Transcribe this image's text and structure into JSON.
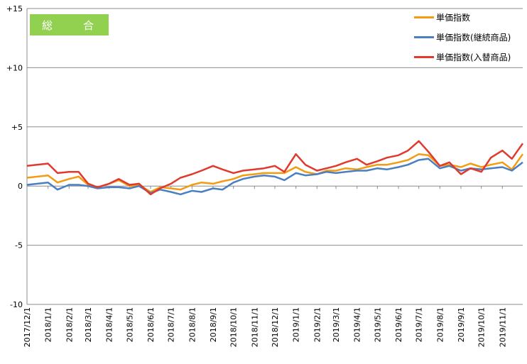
{
  "chart_data": {
    "type": "line",
    "title": "総　合",
    "xlabel": "",
    "ylabel": "",
    "ylim": [
      -10,
      15
    ],
    "yticks": [
      15,
      10,
      5,
      0,
      -5,
      -10
    ],
    "ytick_labels": [
      "+15",
      "+10",
      "+5",
      "0",
      "-5",
      "-10"
    ],
    "grid": true,
    "legend_position": "top-right",
    "x_range": [
      "2017-12-01",
      "2019-12-01"
    ],
    "x_ticks": [
      "2017-12-01",
      "2018-01-01",
      "2018-02-01",
      "2018-03-01",
      "2018-04-01",
      "2018-05-01",
      "2018-06-01",
      "2018-07-01",
      "2018-08-01",
      "2018-09-01",
      "2018-10-01",
      "2018-11-01",
      "2018-12-01",
      "2019-01-01",
      "2019-02-01",
      "2019-03-01",
      "2019-04-01",
      "2019-05-01",
      "2019-06-01",
      "2019-07-01",
      "2019-08-01",
      "2019-09-01",
      "2019-10-01",
      "2019-11-01"
    ],
    "x_tick_labels": [
      "2017/12/1",
      "2018/1/1",
      "2018/2/1",
      "2018/3/1",
      "2018/4/1",
      "2018/5/1",
      "2018/6/1",
      "2018/7/1",
      "2018/8/1",
      "2018/9/1",
      "2018/10/1",
      "2018/11/1",
      "2018/12/1",
      "2019/1/1",
      "2019/2/1",
      "2019/3/1",
      "2019/4/1",
      "2019/5/1",
      "2019/6/1",
      "2019/7/1",
      "2019/8/1",
      "2019/9/1",
      "2019/10/1",
      "2019/11/1"
    ],
    "series": [
      {
        "name": "単価指数",
        "color": "#f39c12",
        "points": [
          [
            "2017-12-01",
            0.7
          ],
          [
            "2018-01-01",
            0.9
          ],
          [
            "2018-01-15",
            0.3
          ],
          [
            "2018-02-01",
            0.6
          ],
          [
            "2018-02-15",
            0.8
          ],
          [
            "2018-03-01",
            0.1
          ],
          [
            "2018-03-15",
            -0.1
          ],
          [
            "2018-04-01",
            0.2
          ],
          [
            "2018-04-15",
            0.5
          ],
          [
            "2018-05-01",
            0.0
          ],
          [
            "2018-05-15",
            0.1
          ],
          [
            "2018-06-01",
            -0.5
          ],
          [
            "2018-06-15",
            -0.1
          ],
          [
            "2018-07-01",
            -0.2
          ],
          [
            "2018-07-15",
            -0.3
          ],
          [
            "2018-08-01",
            0.1
          ],
          [
            "2018-08-15",
            0.3
          ],
          [
            "2018-09-01",
            0.2
          ],
          [
            "2018-09-15",
            0.4
          ],
          [
            "2018-10-01",
            0.6
          ],
          [
            "2018-10-15",
            0.9
          ],
          [
            "2018-11-01",
            1.0
          ],
          [
            "2018-11-15",
            1.1
          ],
          [
            "2018-12-01",
            1.1
          ],
          [
            "2018-12-15",
            1.1
          ],
          [
            "2019-01-01",
            1.6
          ],
          [
            "2019-01-15",
            1.2
          ],
          [
            "2019-02-01",
            1.0
          ],
          [
            "2019-02-15",
            1.3
          ],
          [
            "2019-03-01",
            1.3
          ],
          [
            "2019-03-15",
            1.5
          ],
          [
            "2019-04-01",
            1.4
          ],
          [
            "2019-04-15",
            1.6
          ],
          [
            "2019-05-01",
            1.8
          ],
          [
            "2019-05-15",
            1.8
          ],
          [
            "2019-06-01",
            2.0
          ],
          [
            "2019-06-15",
            2.2
          ],
          [
            "2019-07-01",
            2.7
          ],
          [
            "2019-07-15",
            2.6
          ],
          [
            "2019-08-01",
            1.7
          ],
          [
            "2019-08-15",
            1.8
          ],
          [
            "2019-09-01",
            1.6
          ],
          [
            "2019-09-15",
            1.9
          ],
          [
            "2019-10-01",
            1.6
          ],
          [
            "2019-10-15",
            1.8
          ],
          [
            "2019-11-01",
            2.0
          ],
          [
            "2019-11-15",
            1.4
          ],
          [
            "2019-12-01",
            2.7
          ]
        ]
      },
      {
        "name": "単価指数(継続商品)",
        "color": "#4a7fc1",
        "points": [
          [
            "2017-12-01",
            0.1
          ],
          [
            "2018-01-01",
            0.3
          ],
          [
            "2018-01-15",
            -0.3
          ],
          [
            "2018-02-01",
            0.1
          ],
          [
            "2018-02-15",
            0.1
          ],
          [
            "2018-03-01",
            0.0
          ],
          [
            "2018-03-15",
            -0.2
          ],
          [
            "2018-04-01",
            -0.1
          ],
          [
            "2018-04-15",
            -0.1
          ],
          [
            "2018-05-01",
            -0.2
          ],
          [
            "2018-05-15",
            0.0
          ],
          [
            "2018-06-01",
            -0.6
          ],
          [
            "2018-06-15",
            -0.3
          ],
          [
            "2018-07-01",
            -0.5
          ],
          [
            "2018-07-15",
            -0.7
          ],
          [
            "2018-08-01",
            -0.4
          ],
          [
            "2018-08-15",
            -0.5
          ],
          [
            "2018-09-01",
            -0.2
          ],
          [
            "2018-09-15",
            -0.3
          ],
          [
            "2018-10-01",
            0.3
          ],
          [
            "2018-10-15",
            0.6
          ],
          [
            "2018-11-01",
            0.8
          ],
          [
            "2018-11-15",
            0.9
          ],
          [
            "2018-12-01",
            0.8
          ],
          [
            "2018-12-15",
            0.5
          ],
          [
            "2019-01-01",
            1.1
          ],
          [
            "2019-01-15",
            0.9
          ],
          [
            "2019-02-01",
            1.0
          ],
          [
            "2019-02-15",
            1.2
          ],
          [
            "2019-03-01",
            1.1
          ],
          [
            "2019-03-15",
            1.2
          ],
          [
            "2019-04-01",
            1.3
          ],
          [
            "2019-04-15",
            1.3
          ],
          [
            "2019-05-01",
            1.5
          ],
          [
            "2019-05-15",
            1.4
          ],
          [
            "2019-06-01",
            1.6
          ],
          [
            "2019-06-15",
            1.8
          ],
          [
            "2019-07-01",
            2.2
          ],
          [
            "2019-07-15",
            2.3
          ],
          [
            "2019-08-01",
            1.5
          ],
          [
            "2019-08-15",
            1.7
          ],
          [
            "2019-09-01",
            1.3
          ],
          [
            "2019-09-15",
            1.5
          ],
          [
            "2019-10-01",
            1.4
          ],
          [
            "2019-10-15",
            1.5
          ],
          [
            "2019-11-01",
            1.6
          ],
          [
            "2019-11-15",
            1.3
          ],
          [
            "2019-12-01",
            2.0
          ]
        ]
      },
      {
        "name": "単価指数(入替商品)",
        "color": "#e03a2f",
        "points": [
          [
            "2017-12-01",
            1.7
          ],
          [
            "2018-01-01",
            1.9
          ],
          [
            "2018-01-15",
            1.1
          ],
          [
            "2018-02-01",
            1.2
          ],
          [
            "2018-02-15",
            1.2
          ],
          [
            "2018-03-01",
            0.2
          ],
          [
            "2018-03-15",
            -0.1
          ],
          [
            "2018-04-01",
            0.2
          ],
          [
            "2018-04-15",
            0.6
          ],
          [
            "2018-05-01",
            0.1
          ],
          [
            "2018-05-15",
            0.2
          ],
          [
            "2018-06-01",
            -0.7
          ],
          [
            "2018-06-15",
            -0.2
          ],
          [
            "2018-07-01",
            0.2
          ],
          [
            "2018-07-15",
            0.7
          ],
          [
            "2018-08-01",
            1.0
          ],
          [
            "2018-08-15",
            1.3
          ],
          [
            "2018-09-01",
            1.7
          ],
          [
            "2018-09-15",
            1.4
          ],
          [
            "2018-10-01",
            1.1
          ],
          [
            "2018-10-15",
            1.3
          ],
          [
            "2018-11-01",
            1.4
          ],
          [
            "2018-11-15",
            1.5
          ],
          [
            "2018-12-01",
            1.7
          ],
          [
            "2018-12-15",
            1.2
          ],
          [
            "2019-01-01",
            2.7
          ],
          [
            "2019-01-15",
            1.8
          ],
          [
            "2019-02-01",
            1.3
          ],
          [
            "2019-02-15",
            1.5
          ],
          [
            "2019-03-01",
            1.7
          ],
          [
            "2019-03-15",
            2.0
          ],
          [
            "2019-04-01",
            2.3
          ],
          [
            "2019-04-15",
            1.8
          ],
          [
            "2019-05-01",
            2.1
          ],
          [
            "2019-05-15",
            2.4
          ],
          [
            "2019-06-01",
            2.6
          ],
          [
            "2019-06-15",
            3.0
          ],
          [
            "2019-07-01",
            3.8
          ],
          [
            "2019-07-15",
            2.9
          ],
          [
            "2019-08-01",
            1.7
          ],
          [
            "2019-08-15",
            2.0
          ],
          [
            "2019-09-01",
            1.0
          ],
          [
            "2019-09-15",
            1.5
          ],
          [
            "2019-10-01",
            1.2
          ],
          [
            "2019-10-15",
            2.4
          ],
          [
            "2019-11-01",
            3.0
          ],
          [
            "2019-11-15",
            2.3
          ],
          [
            "2019-12-01",
            3.6
          ]
        ]
      }
    ]
  }
}
